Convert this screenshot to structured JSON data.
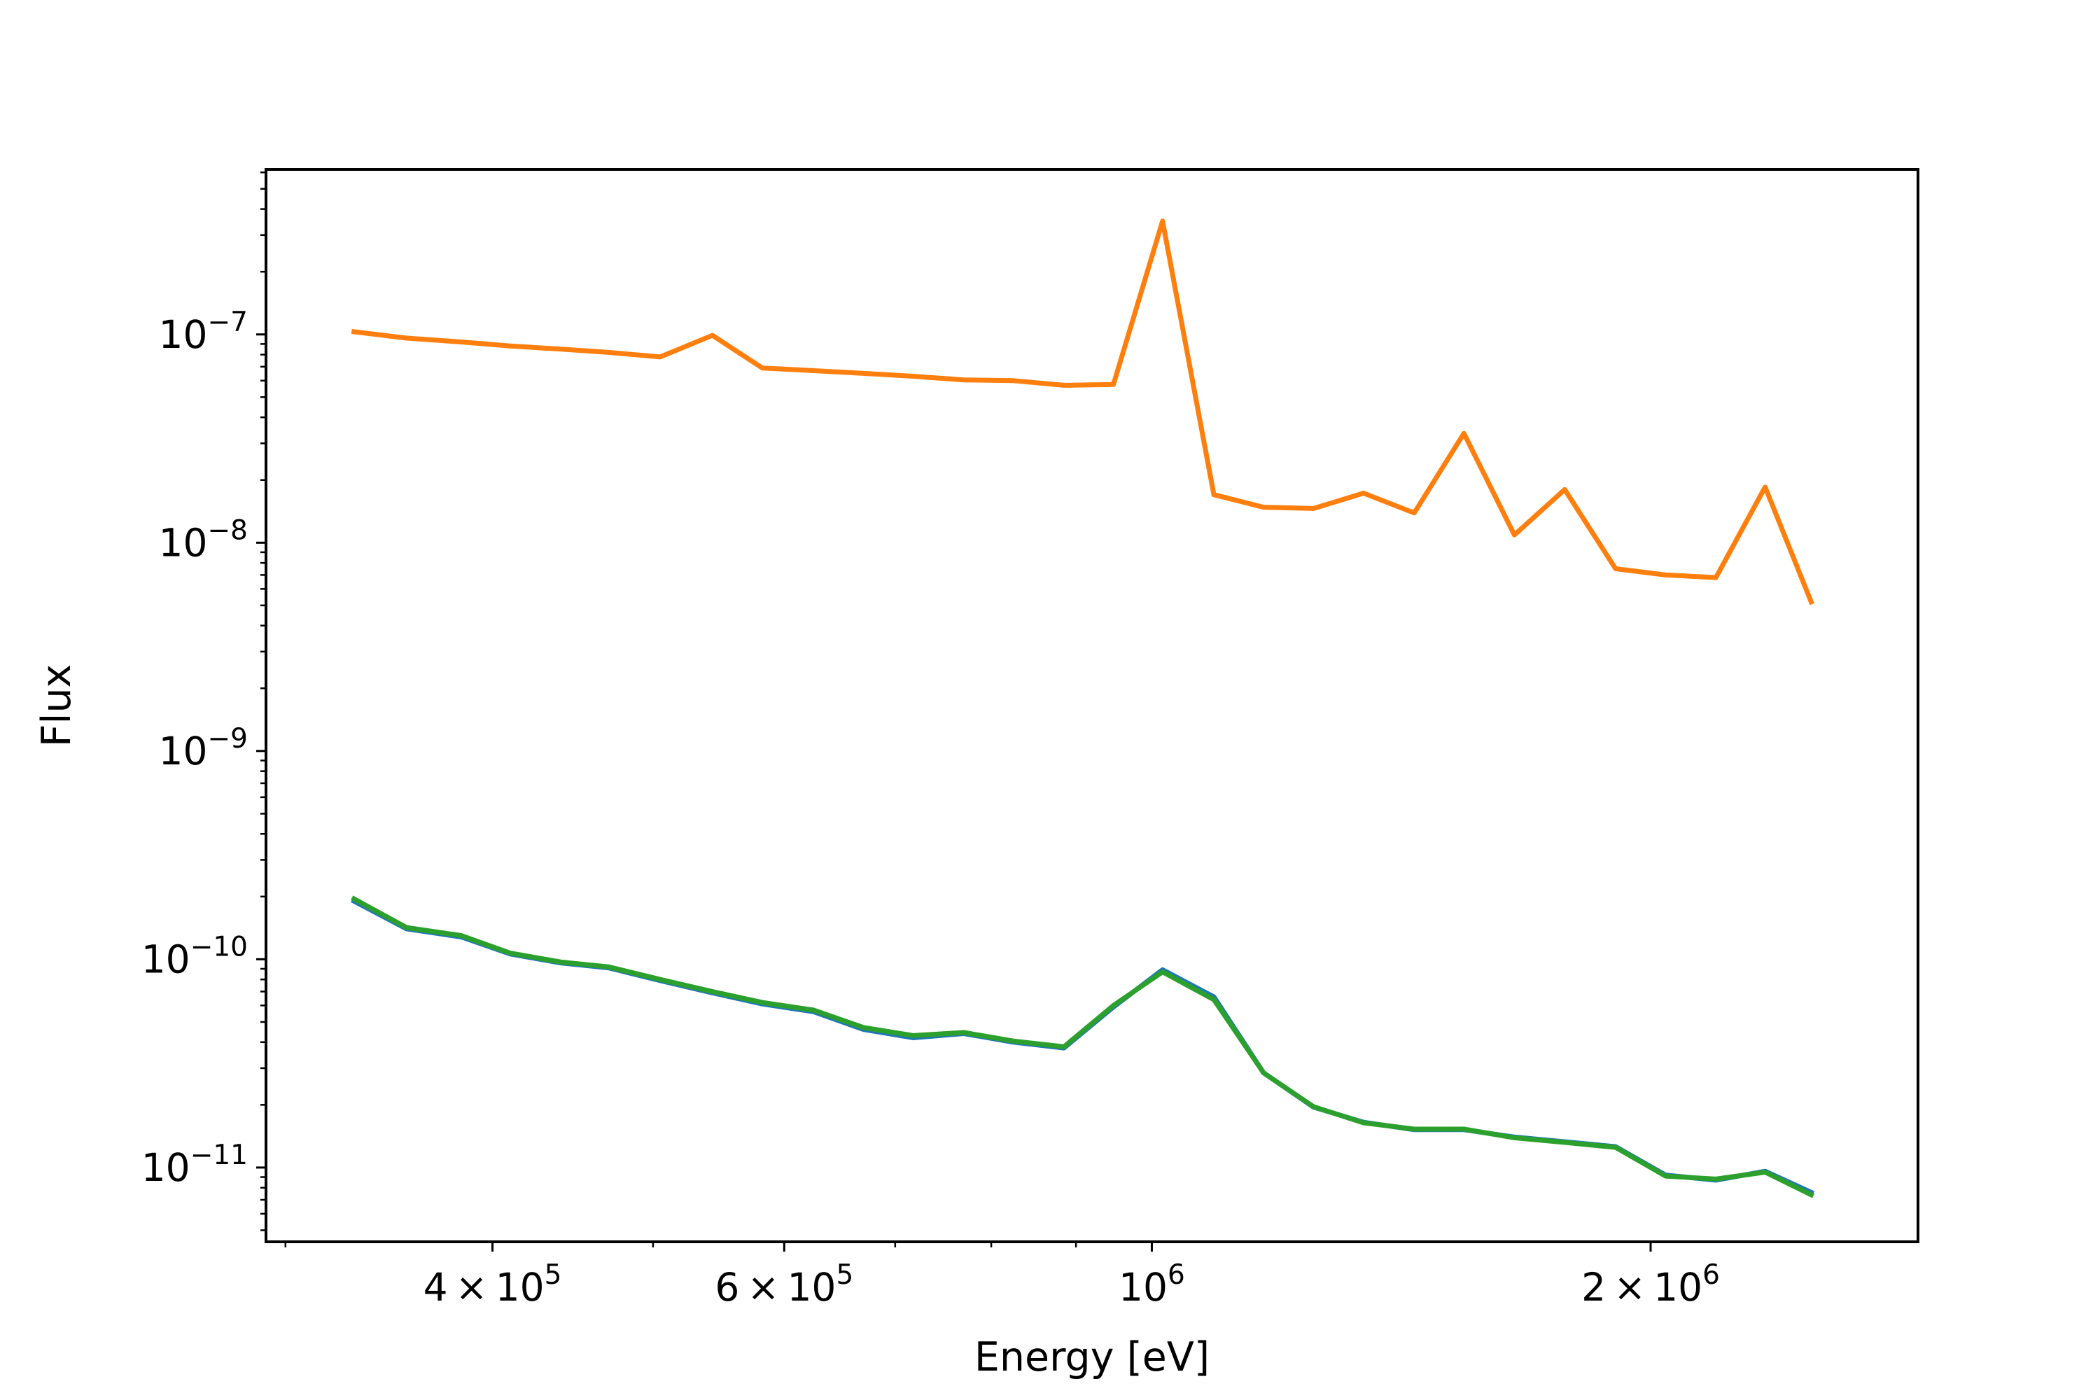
{
  "chart_data": {
    "type": "line",
    "title": "",
    "xlabel": "Energy [eV]",
    "ylabel": "Flux",
    "xscale": "log",
    "yscale": "log",
    "xlim": [
      292000,
      2900000
    ],
    "ylim": [
      4.4e-12,
      6.2e-07
    ],
    "grid": false,
    "legend": "none",
    "x_ticks": [
      {
        "value": 400000,
        "mantissa": "4",
        "times": "×",
        "base": "10",
        "exp": "5"
      },
      {
        "value": 600000,
        "mantissa": "6",
        "times": "×",
        "base": "10",
        "exp": "5"
      },
      {
        "value": 1000000,
        "mantissa": "",
        "times": "",
        "base": "10",
        "exp": "6"
      },
      {
        "value": 2000000,
        "mantissa": "2",
        "times": "×",
        "base": "10",
        "exp": "6"
      }
    ],
    "y_ticks": [
      {
        "value": 1e-11,
        "base": "10",
        "exp": "−11"
      },
      {
        "value": 1e-10,
        "base": "10",
        "exp": "−10"
      },
      {
        "value": 1e-09,
        "base": "10",
        "exp": "−9"
      },
      {
        "value": 1e-08,
        "base": "10",
        "exp": "−8"
      },
      {
        "value": 1e-07,
        "base": "10",
        "exp": "−7"
      }
    ],
    "x": [
      330000,
      355000,
      383000,
      410000,
      440000,
      470000,
      505000,
      543000,
      582000,
      625000,
      670000,
      718000,
      770000,
      825000,
      885000,
      948000,
      1015000,
      1090000,
      1168000,
      1252000,
      1342000,
      1440000,
      1543000,
      1655000,
      1775000,
      1905000,
      2042000,
      2190000,
      2345000,
      2500000
    ],
    "series": [
      {
        "color": "#1f77b4",
        "values": [
          1.9e-10,
          1.4e-10,
          1.28e-10,
          1.06e-10,
          9.6e-11,
          9.1e-11,
          7.9e-11,
          6.9e-11,
          6.1e-11,
          5.6e-11,
          4.6e-11,
          4.2e-11,
          4.4e-11,
          4e-11,
          3.75e-11,
          5.9e-11,
          8.9e-11,
          6.6e-11,
          2.85e-11,
          1.95e-11,
          1.65e-11,
          1.52e-11,
          1.52e-11,
          1.4e-11,
          1.33e-11,
          1.26e-11,
          9.2e-12,
          8.7e-12,
          9.6e-12,
          7.6e-12
        ]
      },
      {
        "color": "#ff7f0e",
        "values": [
          1.03e-07,
          9.6e-08,
          9.2e-08,
          8.8e-08,
          8.5e-08,
          8.2e-08,
          7.8e-08,
          9.9e-08,
          6.9e-08,
          6.7e-08,
          6.5e-08,
          6.3e-08,
          6.05e-08,
          6e-08,
          5.7e-08,
          5.75e-08,
          3.5e-07,
          1.7e-08,
          1.48e-08,
          1.46e-08,
          1.73e-08,
          1.39e-08,
          3.35e-08,
          1.09e-08,
          1.8e-08,
          7.5e-09,
          7e-09,
          6.8e-09,
          1.85e-08,
          5.2e-09
        ]
      },
      {
        "color": "#2ca02c",
        "values": [
          1.95e-10,
          1.42e-10,
          1.3e-10,
          1.07e-10,
          9.7e-11,
          9.2e-11,
          8e-11,
          7e-11,
          6.2e-11,
          5.7e-11,
          4.7e-11,
          4.3e-11,
          4.45e-11,
          4.05e-11,
          3.8e-11,
          6e-11,
          8.7e-11,
          6.4e-11,
          2.85e-11,
          1.96e-11,
          1.64e-11,
          1.53e-11,
          1.53e-11,
          1.39e-11,
          1.32e-11,
          1.25e-11,
          9.1e-12,
          8.8e-12,
          9.5e-12,
          7.4e-12
        ]
      }
    ]
  }
}
